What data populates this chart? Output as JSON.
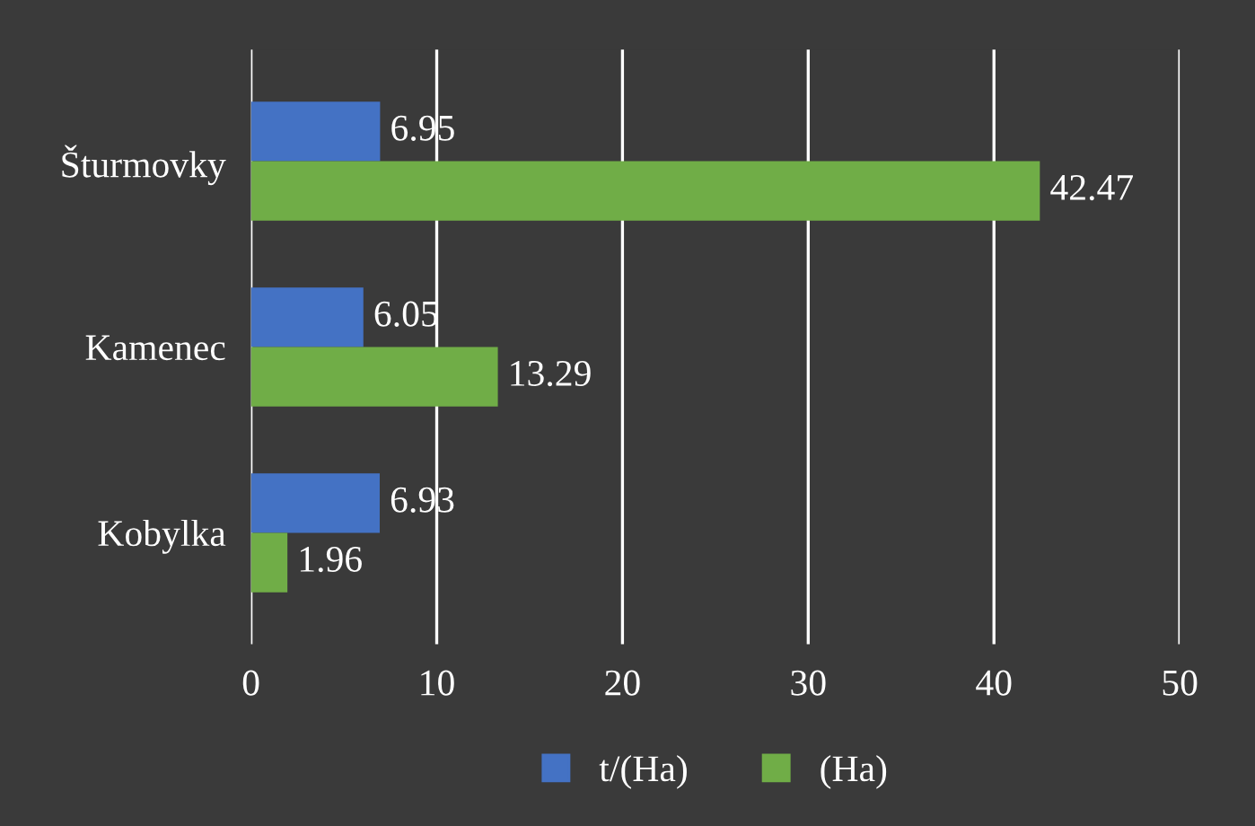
{
  "chart_data": {
    "type": "bar",
    "orientation": "horizontal",
    "categories": [
      "Šturmovky",
      "Kamenec",
      "Kobylka"
    ],
    "series": [
      {
        "name": "t/(Ha)",
        "color": "#4472c4",
        "values": [
          6.95,
          6.05,
          6.93
        ]
      },
      {
        "name": "(Ha)",
        "color": "#70ad47",
        "values": [
          42.47,
          13.29,
          1.96
        ]
      }
    ],
    "xlim": [
      0,
      50
    ],
    "xticks": [
      0,
      10,
      20,
      30,
      40,
      50
    ],
    "grid": "x",
    "data_labels": true,
    "legend": "bottom"
  }
}
